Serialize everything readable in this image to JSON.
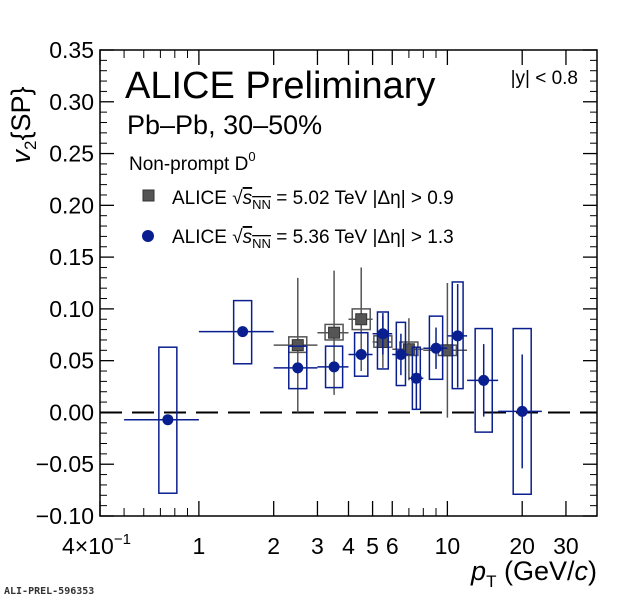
{
  "chart_data": {
    "type": "scatter",
    "title": "ALICE Preliminary",
    "subtitle": "Pb–Pb, 30–50%",
    "species": "Non-prompt D",
    "species_sup": "0",
    "rapidity_cut": "|y| < 0.8",
    "xlabel": "p_T (GeV/c)",
    "ylabel": "v_2{SP}",
    "xscale": "log",
    "xlim": [
      0.4,
      40
    ],
    "ylim": [
      -0.1,
      0.35
    ],
    "x_ticks": [
      {
        "value": 0.4,
        "label": "4×10"
      },
      {
        "value": 1,
        "label": "1"
      },
      {
        "value": 2,
        "label": "2"
      },
      {
        "value": 3,
        "label": "3"
      },
      {
        "value": 4,
        "label": "4"
      },
      {
        "value": 5,
        "label": "5"
      },
      {
        "value": 6,
        "label": "6"
      },
      {
        "value": 10,
        "label": "10"
      },
      {
        "value": 20,
        "label": "20"
      },
      {
        "value": 30,
        "label": "30"
      }
    ],
    "x_tick_exponent": "−1",
    "y_ticks": [
      {
        "value": -0.1,
        "label": "−0.10"
      },
      {
        "value": -0.05,
        "label": "−0.05"
      },
      {
        "value": 0.0,
        "label": "0.00"
      },
      {
        "value": 0.05,
        "label": "0.05"
      },
      {
        "value": 0.1,
        "label": "0.10"
      },
      {
        "value": 0.15,
        "label": "0.15"
      },
      {
        "value": 0.2,
        "label": "0.20"
      },
      {
        "value": 0.25,
        "label": "0.25"
      },
      {
        "value": 0.3,
        "label": "0.30"
      },
      {
        "value": 0.35,
        "label": "0.35"
      }
    ],
    "reference_line": {
      "y": 0,
      "style": "dashed"
    },
    "legend_placement": "top-left",
    "series": [
      {
        "name": "ALICE √sNN = 5.02 TeV |Δη| > 0.9",
        "legend": {
          "prefix": "ALICE",
          "sqrt": "s",
          "sub": "NN",
          "rest": " = 5.02 TeV |Δη| > 0.9"
        },
        "marker": "square",
        "color": "#555555",
        "points": [
          {
            "x": 2.5,
            "y": 0.065,
            "xlo": 2.0,
            "xhi": 3.0,
            "stat": 0.065,
            "syslo": 0.058,
            "syshi": 0.073
          },
          {
            "x": 3.5,
            "y": 0.077,
            "xlo": 3.0,
            "xhi": 4.0,
            "stat": 0.06,
            "syslo": 0.07,
            "syshi": 0.085
          },
          {
            "x": 4.5,
            "y": 0.09,
            "xlo": 4.0,
            "xhi": 5.0,
            "stat": 0.05,
            "syslo": 0.08,
            "syshi": 0.1
          },
          {
            "x": 5.5,
            "y": 0.068,
            "xlo": 5.0,
            "xhi": 6.0,
            "stat": 0.025,
            "syslo": 0.063,
            "syshi": 0.074
          },
          {
            "x": 7.0,
            "y": 0.061,
            "xlo": 6.0,
            "xhi": 8.0,
            "stat": 0.03,
            "syslo": 0.055,
            "syshi": 0.068
          },
          {
            "x": 10.0,
            "y": 0.06,
            "xlo": 8.0,
            "xhi": 12.0,
            "stat": 0.065,
            "syslo": 0.055,
            "syshi": 0.065
          }
        ]
      },
      {
        "name": "ALICE √sNN = 5.36 TeV |Δη| > 1.3",
        "legend": {
          "prefix": "ALICE",
          "sqrt": "s",
          "sub": "NN",
          "rest": " = 5.36 TeV |Δη| > 1.3"
        },
        "marker": "circle",
        "color": "#0a1f8f",
        "points": [
          {
            "x": 0.75,
            "y": -0.007,
            "xlo": 0.5,
            "xhi": 1.0,
            "stat": 0.0,
            "syslo": -0.078,
            "syshi": 0.063
          },
          {
            "x": 1.5,
            "y": 0.078,
            "xlo": 1.0,
            "xhi": 2.0,
            "stat": 0.0,
            "syslo": 0.047,
            "syshi": 0.108
          },
          {
            "x": 2.5,
            "y": 0.043,
            "xlo": 2.0,
            "xhi": 3.0,
            "stat": 0.0,
            "syslo": 0.023,
            "syshi": 0.064
          },
          {
            "x": 3.5,
            "y": 0.044,
            "xlo": 3.0,
            "xhi": 4.0,
            "stat": 0.0,
            "syslo": 0.024,
            "syshi": 0.064
          },
          {
            "x": 4.5,
            "y": 0.056,
            "xlo": 4.0,
            "xhi": 5.0,
            "stat": 0.0,
            "syslo": 0.035,
            "syshi": 0.077
          },
          {
            "x": 5.5,
            "y": 0.076,
            "xlo": 5.0,
            "xhi": 6.0,
            "stat": 0.02,
            "syslo": 0.042,
            "syshi": 0.097
          },
          {
            "x": 6.5,
            "y": 0.056,
            "xlo": 6.0,
            "xhi": 7.0,
            "stat": 0.02,
            "syslo": 0.026,
            "syshi": 0.087
          },
          {
            "x": 7.5,
            "y": 0.033,
            "xlo": 7.0,
            "xhi": 8.0,
            "stat": 0.03,
            "syslo": 0.003,
            "syshi": 0.063
          },
          {
            "x": 9.0,
            "y": 0.062,
            "xlo": 8.0,
            "xhi": 10.0,
            "stat": 0.02,
            "syslo": 0.032,
            "syshi": 0.093
          },
          {
            "x": 11.0,
            "y": 0.074,
            "xlo": 10.0,
            "xhi": 12.0,
            "stat": 0.05,
            "syslo": 0.023,
            "syshi": 0.126
          },
          {
            "x": 14.0,
            "y": 0.031,
            "xlo": 12.0,
            "xhi": 16.0,
            "stat": 0.035,
            "syslo": -0.019,
            "syshi": 0.081
          },
          {
            "x": 20.0,
            "y": 0.001,
            "xlo": 16.0,
            "xhi": 24.0,
            "stat": 0.055,
            "syslo": -0.079,
            "syshi": 0.081
          }
        ]
      }
    ]
  },
  "footer": "ALI-PREL-596353"
}
